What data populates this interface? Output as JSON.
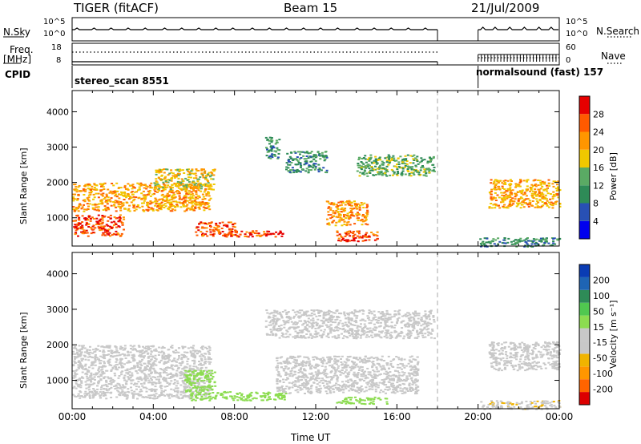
{
  "header": {
    "radar": "TIGER (fitACF)",
    "beam": "Beam 15",
    "date": "21/Jul/2009"
  },
  "left_labels": {
    "nsky": "N.Sky",
    "freq1": "Freq.",
    "freq2": "[MHz]",
    "cpid": "CPID"
  },
  "right_labels": {
    "nsearch": "N.Search",
    "nave": "Nave"
  },
  "nsky_ticks": [
    "10^5",
    "10^0"
  ],
  "freq_ticks": [
    "18",
    "8"
  ],
  "nave_ticks": [
    "60",
    "0"
  ],
  "cpid_segments": [
    {
      "label": "stereo_scan 8551",
      "start": 0,
      "end": 18
    },
    {
      "label": "normalsound (fast) 157",
      "start": 20,
      "end": 24
    }
  ],
  "colors": {
    "power": [
      "#0000ee",
      "#2850b4",
      "#2e8b57",
      "#5aaa64",
      "#f0c800",
      "#ff9600",
      "#ff5a00",
      "#e60000"
    ],
    "velocity": [
      "#dc0000",
      "#ff6400",
      "#ff9600",
      "#f0b400",
      "#c8c8c8",
      "#c8c8c8",
      "#8cdc50",
      "#50c850",
      "#2e8b57",
      "#1e64b4",
      "#0a3cb4"
    ]
  },
  "chart_data": [
    {
      "type": "heatmap",
      "name": "Power",
      "ylabel": "Slant Range [km]",
      "yticks": [
        1000,
        2000,
        3000,
        4000
      ],
      "ylim": [
        200,
        4600
      ],
      "xlim": [
        0,
        24
      ],
      "colorbar": {
        "label": "Power [dB]",
        "ticks": [
          "4",
          "8",
          "12",
          "16",
          "20",
          "24",
          "28"
        ],
        "range": [
          0,
          32
        ]
      },
      "data_gap": [
        18,
        20
      ],
      "regions": [
        {
          "t": [
            0,
            6.8
          ],
          "r": [
            1200,
            2000
          ],
          "level": 21
        },
        {
          "t": [
            0,
            2.5
          ],
          "r": [
            500,
            1100
          ],
          "level": 27
        },
        {
          "t": [
            4,
            7
          ],
          "r": [
            1800,
            2400
          ],
          "level": 18
        },
        {
          "t": [
            6,
            8
          ],
          "r": [
            500,
            900
          ],
          "level": 26
        },
        {
          "t": [
            7.5,
            10.5
          ],
          "r": [
            480,
            650
          ],
          "level": 27
        },
        {
          "t": [
            9.5,
            10.2
          ],
          "r": [
            2700,
            3300
          ],
          "level": 11
        },
        {
          "t": [
            10.5,
            12.5
          ],
          "r": [
            2300,
            2900
          ],
          "level": 10
        },
        {
          "t": [
            12.5,
            14.5
          ],
          "r": [
            800,
            1500
          ],
          "level": 22
        },
        {
          "t": [
            13,
            15
          ],
          "r": [
            350,
            650
          ],
          "level": 27
        },
        {
          "t": [
            14,
            17.8
          ],
          "r": [
            2200,
            2800
          ],
          "level": 13
        },
        {
          "t": [
            20.5,
            24
          ],
          "r": [
            1300,
            2100
          ],
          "level": 21
        },
        {
          "t": [
            20,
            24
          ],
          "r": [
            200,
            450
          ],
          "level": 10
        }
      ]
    },
    {
      "type": "heatmap",
      "name": "Velocity",
      "ylabel": "Slant Range [km]",
      "xlabel": "Time UT",
      "yticks": [
        1000,
        2000,
        3000,
        4000
      ],
      "ylim": [
        200,
        4600
      ],
      "xlim": [
        0,
        24
      ],
      "xticks": [
        "00:00",
        "04:00",
        "08:00",
        "12:00",
        "16:00",
        "20:00",
        "00:00"
      ],
      "colorbar": {
        "label": "Velocity [m s⁻¹]",
        "ticks": [
          "-200",
          "-100",
          "-50",
          "-15",
          "15",
          "50",
          "100",
          "200"
        ],
        "range": [
          -250,
          250
        ]
      },
      "data_gap": [
        18,
        20
      ],
      "regions": [
        {
          "t": [
            0,
            6.8
          ],
          "r": [
            500,
            2000
          ],
          "level": 0
        },
        {
          "t": [
            5.5,
            7
          ],
          "r": [
            700,
            1300
          ],
          "level": 45
        },
        {
          "t": [
            5.8,
            10.5
          ],
          "r": [
            450,
            700
          ],
          "level": 40
        },
        {
          "t": [
            9.5,
            17.8
          ],
          "r": [
            2200,
            3000
          ],
          "level": 0
        },
        {
          "t": [
            10,
            17
          ],
          "r": [
            650,
            1700
          ],
          "level": 0
        },
        {
          "t": [
            13,
            15.5
          ],
          "r": [
            350,
            550
          ],
          "level": 35
        },
        {
          "t": [
            20.5,
            24
          ],
          "r": [
            1300,
            2100
          ],
          "level": 0
        },
        {
          "t": [
            20,
            24
          ],
          "r": [
            200,
            450
          ],
          "level": -60
        }
      ]
    }
  ]
}
